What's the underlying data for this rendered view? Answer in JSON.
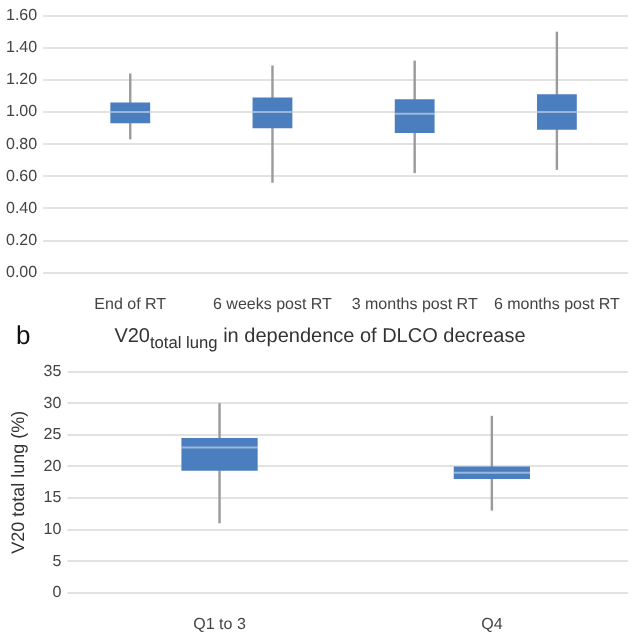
{
  "chart_data": [
    {
      "type": "box",
      "categories": [
        "End of RT",
        "6 weeks post RT",
        "3 months post RT",
        "6 months post RT"
      ],
      "boxes": [
        {
          "low": 0.83,
          "q1": 0.93,
          "median": 1.0,
          "q3": 1.06,
          "high": 1.24
        },
        {
          "low": 0.56,
          "q1": 0.9,
          "median": 1.0,
          "q3": 1.09,
          "high": 1.29
        },
        {
          "low": 0.62,
          "q1": 0.87,
          "median": 0.99,
          "q3": 1.08,
          "high": 1.32
        },
        {
          "low": 0.64,
          "q1": 0.89,
          "median": 1.0,
          "q3": 1.11,
          "high": 1.5
        }
      ],
      "color": "#4a7ebf",
      "ylim": [
        0,
        1.6
      ],
      "yticks": [
        {
          "value": 0,
          "label": "0.00"
        },
        {
          "value": 0.2,
          "label": "0.20"
        },
        {
          "value": 0.4,
          "label": "0.40"
        },
        {
          "value": 0.6,
          "label": "0.60"
        },
        {
          "value": 0.8,
          "label": "0.80"
        },
        {
          "value": 1,
          "label": "1.00"
        },
        {
          "value": 1.2,
          "label": "1.20"
        },
        {
          "value": 1.4,
          "label": "1.40"
        },
        {
          "value": 1.6,
          "label": "1.60"
        }
      ],
      "grid": "y",
      "legend": false
    },
    {
      "type": "box",
      "title": "V20$_{total lung}$ in dependence of DLCO decrease",
      "ylabel": "V20 total lung (%)",
      "annotations": [
        "b"
      ],
      "categories": [
        "Q1 to 3",
        "Q4"
      ],
      "boxes": [
        {
          "low": 11,
          "q1": 19.3,
          "median": 23,
          "q3": 24.5,
          "high": 30
        },
        {
          "low": 13,
          "q1": 18,
          "median": 19,
          "q3": 20,
          "high": 28
        }
      ],
      "color": "#4a7ebf",
      "ylim": [
        0,
        35
      ],
      "yticks": [
        0,
        5,
        10,
        15,
        20,
        25,
        30,
        35
      ],
      "grid": "y",
      "legend": false
    }
  ]
}
